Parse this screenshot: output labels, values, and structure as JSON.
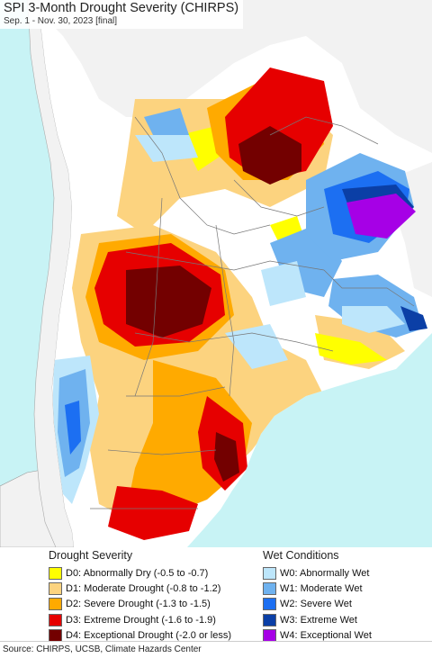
{
  "title": "SPI 3-Month Drought Severity (CHIRPS)",
  "subtitle": "Sep. 1 - Nov. 30, 2023 [final]",
  "colors": {
    "ocean": "#c8f3f5",
    "land_outside": "#f2f2f2",
    "normal": "#ffffff",
    "border": "#777777"
  },
  "legend": {
    "drought": {
      "heading": "Drought Severity",
      "items": [
        {
          "label": "D0: Abnormally Dry (-0.5 to -0.7)",
          "color": "#ffff00"
        },
        {
          "label": "D1: Moderate Drought (-0.8 to -1.2)",
          "color": "#fcd37f"
        },
        {
          "label": "D2: Severe Drought (-1.3 to -1.5)",
          "color": "#ffaa00"
        },
        {
          "label": "D3: Extreme Drought (-1.6 to -1.9)",
          "color": "#e60000"
        },
        {
          "label": "D4: Exceptional Drought (-2.0 or less)",
          "color": "#730000"
        }
      ]
    },
    "wet": {
      "heading": "Wet Conditions",
      "items": [
        {
          "label": "W0: Abnormally Wet",
          "color": "#bde6fb"
        },
        {
          "label": "W1: Moderate Wet",
          "color": "#6fb2ef"
        },
        {
          "label": "W2: Severe Wet",
          "color": "#1c6ff2"
        },
        {
          "label": "W3: Extreme Wet",
          "color": "#0b3fa6"
        },
        {
          "label": "W4: Exceptional Wet",
          "color": "#a600e6"
        }
      ]
    }
  },
  "source": "Source: CHIRPS, UCSB, Climate Hazards Center"
}
